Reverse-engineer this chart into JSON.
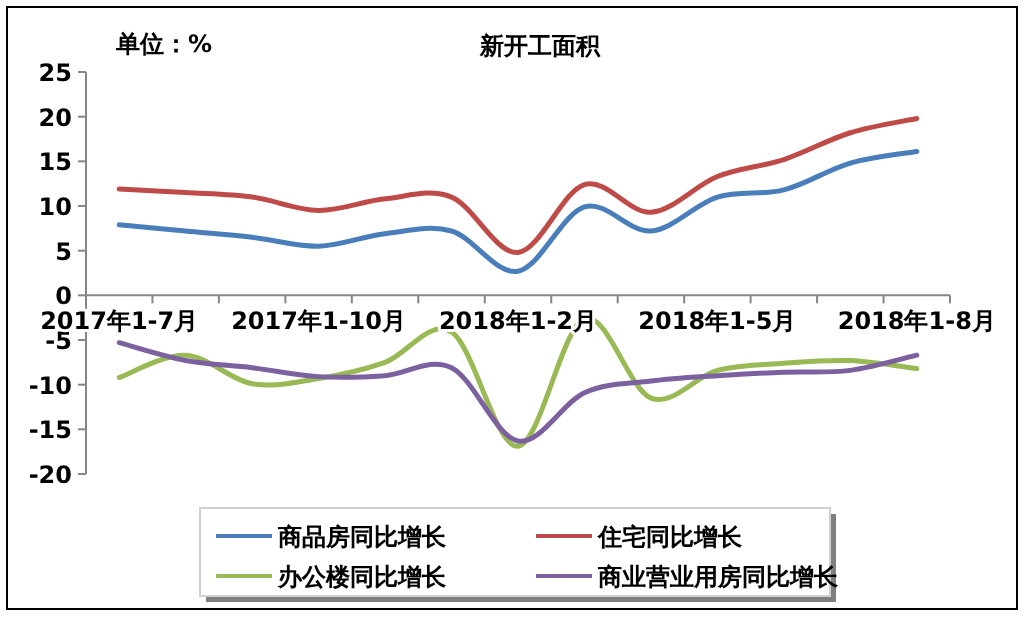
{
  "chart_data": {
    "type": "line",
    "title": "新开工面积",
    "annotations": [
      "单位：%"
    ],
    "categories": [
      "2017年1-7月",
      null,
      null,
      "2017年1-10月",
      null,
      null,
      "2018年1-2月",
      null,
      null,
      "2018年1-5月",
      null,
      null,
      "2018年1-8月"
    ],
    "series": [
      {
        "name": "商品房同比增长",
        "color": "#4a7ebb",
        "values": [
          7.9,
          7.2,
          6.5,
          5.5,
          6.9,
          7.2,
          2.7,
          9.9,
          7.2,
          11.0,
          11.8,
          14.8,
          16.1
        ]
      },
      {
        "name": "住宅同比增长",
        "color": "#be4b48",
        "values": [
          11.9,
          11.5,
          11.0,
          9.5,
          10.8,
          11.0,
          4.8,
          12.4,
          9.3,
          13.3,
          15.2,
          18.2,
          19.8
        ]
      },
      {
        "name": "办公楼同比增长",
        "color": "#98b954",
        "values": [
          -9.2,
          -6.7,
          -9.9,
          -9.3,
          -7.5,
          -4.1,
          -16.9,
          -2.6,
          -11.5,
          -8.4,
          -7.6,
          -7.3,
          -8.2
        ]
      },
      {
        "name": "商业营业用房同比增长",
        "color": "#7d60a0",
        "values": [
          -5.3,
          -7.3,
          -8.1,
          -9.1,
          -9.0,
          -8.1,
          -16.3,
          -10.9,
          -9.6,
          -9.0,
          -8.6,
          -8.4,
          -6.7
        ]
      }
    ],
    "ylim": [
      -20,
      25
    ],
    "yticks": [
      -20,
      -15,
      -10,
      -5,
      0,
      5,
      10,
      15,
      20,
      25
    ],
    "grid": false,
    "legend": "bottom",
    "marker": "none",
    "line_style": "solid"
  }
}
